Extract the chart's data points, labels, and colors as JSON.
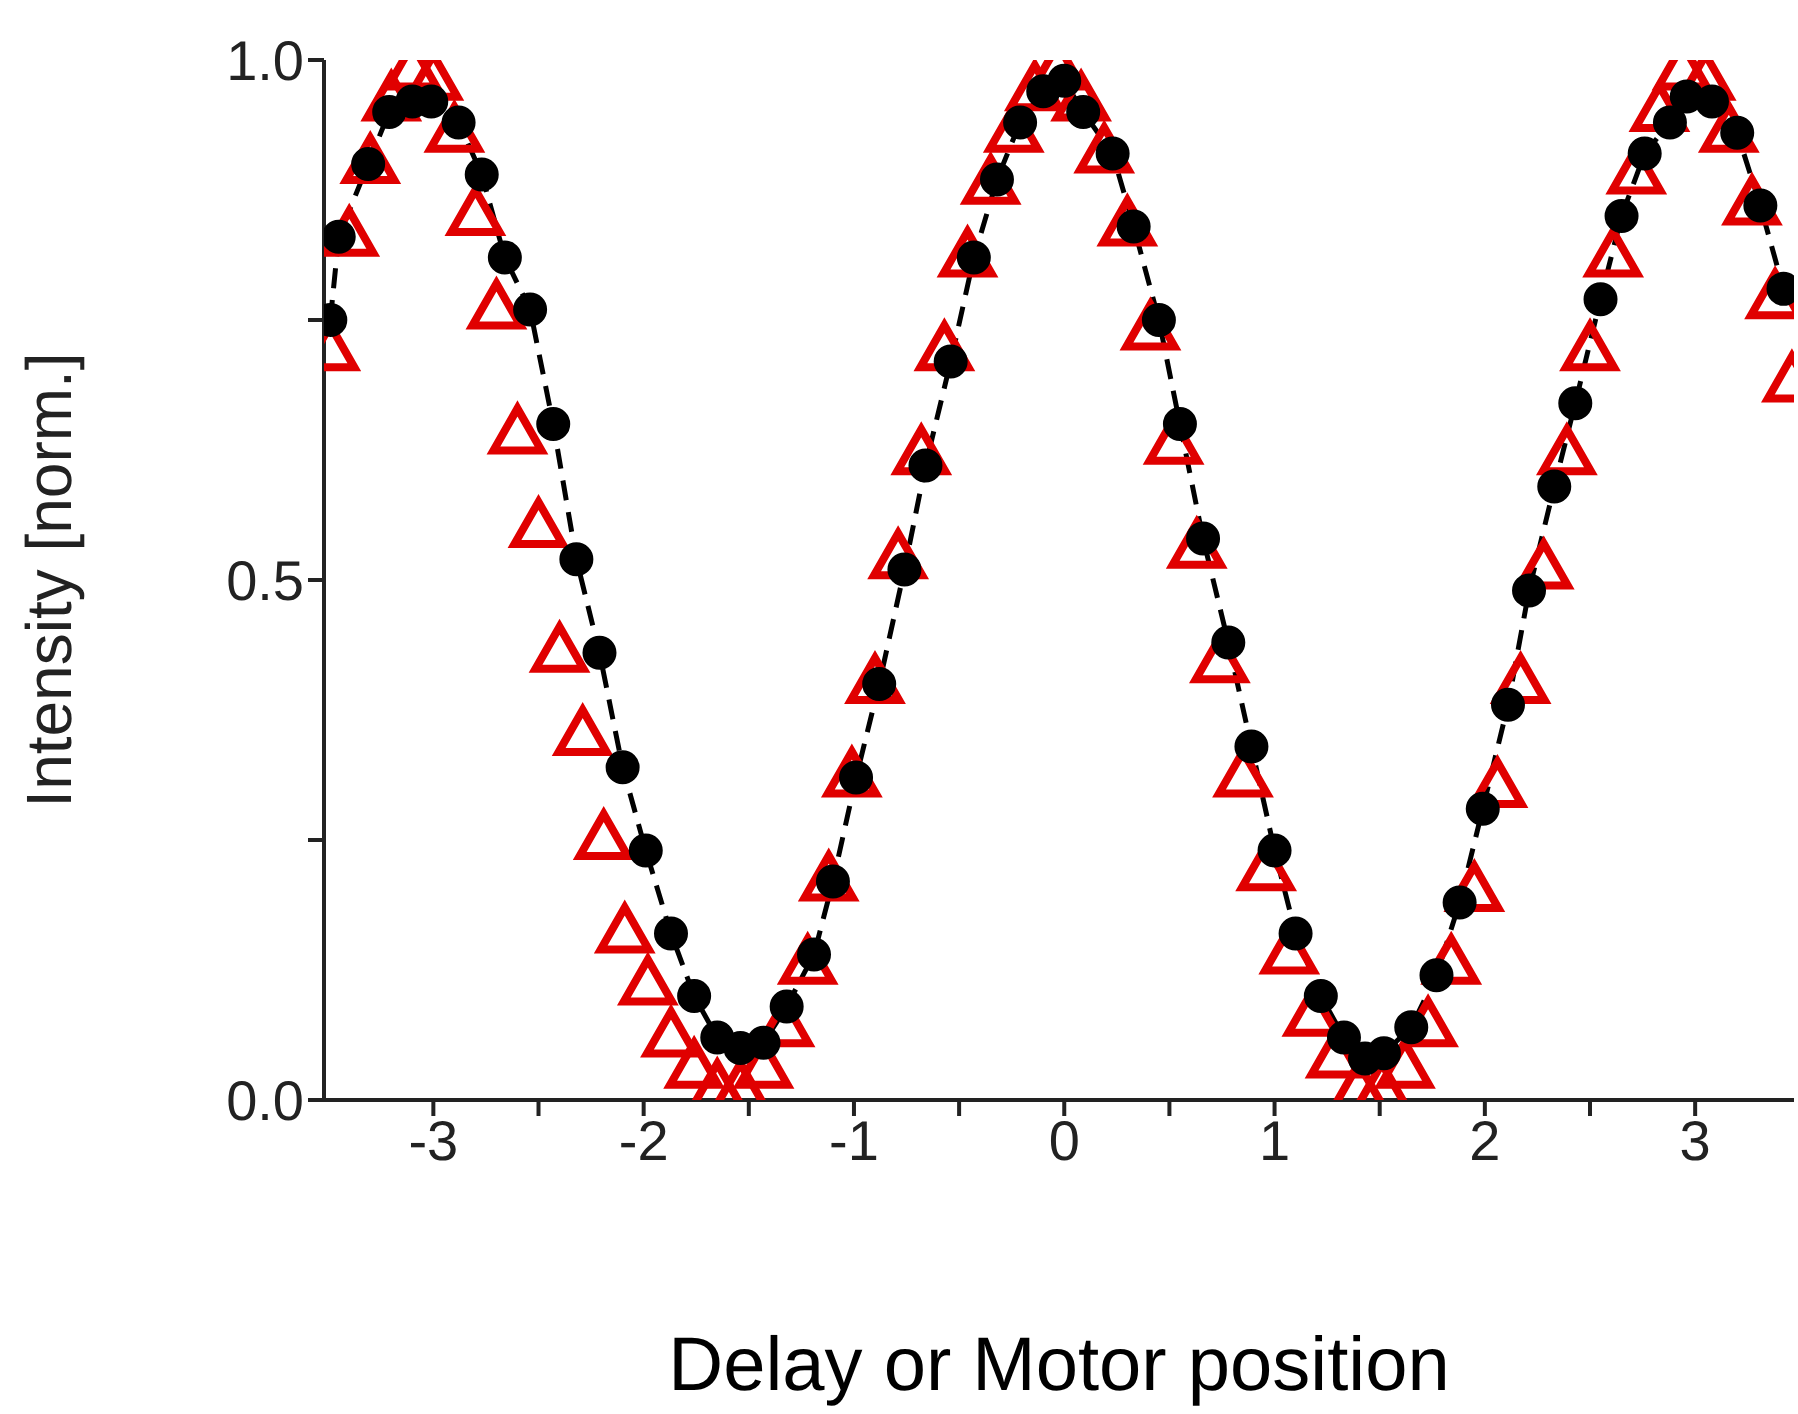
{
  "chart_data": {
    "type": "scatter",
    "xlabel": "Delay or Motor position",
    "ylabel": "Intensity [norm.]",
    "xlim": [
      -3.52,
      3.47
    ],
    "ylim": [
      0,
      1
    ],
    "xticks": [
      -3,
      {
        "value": -2.5,
        "label": null
      },
      -2,
      {
        "value": -1.5,
        "label": null
      },
      -1,
      {
        "value": -0.5,
        "label": null
      },
      0,
      {
        "value": 0.5,
        "label": null
      },
      1,
      {
        "value": 1.5,
        "label": null
      },
      2,
      {
        "value": 2.5,
        "label": null
      },
      3
    ],
    "yticks": [
      {
        "value": 0,
        "label": "0.0"
      },
      {
        "value": 0.25,
        "label": null
      },
      0.5,
      {
        "value": 0.75,
        "label": null
      },
      {
        "value": 1,
        "label": "1.0"
      }
    ],
    "grid": false,
    "legend": false,
    "series": [
      {
        "type": "scatter",
        "marker": "triangle",
        "color": "#e00000",
        "x": [
          -3.49,
          -3.4,
          -3.3,
          -3.2,
          -3.1,
          -3.0,
          -2.9,
          -2.8,
          -2.7,
          -2.6,
          -2.5,
          -2.4,
          -2.29,
          -2.19,
          -2.09,
          -1.98,
          -1.87,
          -1.76,
          -1.65,
          -1.54,
          -1.43,
          -1.33,
          -1.22,
          -1.12,
          -1.01,
          -0.9,
          -0.79,
          -0.68,
          -0.57,
          -0.46,
          -0.35,
          -0.24,
          -0.14,
          -0.03,
          0.08,
          0.19,
          0.3,
          0.41,
          0.52,
          0.63,
          0.74,
          0.85,
          0.96,
          1.07,
          1.18,
          1.29,
          1.4,
          1.51,
          1.62,
          1.73,
          1.84,
          1.95,
          2.06,
          2.17,
          2.28,
          2.39,
          2.5,
          2.61,
          2.72,
          2.83,
          2.94,
          3.05,
          3.16,
          3.27,
          3.38,
          3.46
        ],
        "values": [
          0.72,
          0.83,
          0.9,
          0.96,
          0.99,
          0.98,
          0.93,
          0.85,
          0.76,
          0.64,
          0.55,
          0.43,
          0.35,
          0.25,
          0.16,
          0.11,
          0.06,
          0.03,
          0.01,
          0.01,
          0.03,
          0.07,
          0.13,
          0.21,
          0.31,
          0.4,
          0.52,
          0.62,
          0.72,
          0.81,
          0.88,
          0.93,
          0.97,
          0.99,
          0.96,
          0.91,
          0.84,
          0.74,
          0.63,
          0.53,
          0.42,
          0.31,
          0.22,
          0.14,
          0.08,
          0.04,
          0.01,
          0.01,
          0.03,
          0.07,
          0.13,
          0.2,
          0.3,
          0.4,
          0.51,
          0.62,
          0.72,
          0.81,
          0.89,
          0.95,
          0.99,
          0.98,
          0.93,
          0.86,
          0.77,
          0.69
        ]
      },
      {
        "type": "line",
        "marker": "circle",
        "line_style": "dashed",
        "color": "#000000",
        "x": [
          -3.49,
          -3.45,
          -3.31,
          -3.21,
          -3.1,
          -3.01,
          -2.88,
          -2.77,
          -2.66,
          -2.54,
          -2.43,
          -2.32,
          -2.21,
          -2.1,
          -1.99,
          -1.87,
          -1.76,
          -1.65,
          -1.54,
          -1.43,
          -1.32,
          -1.19,
          -1.1,
          -0.99,
          -0.88,
          -0.76,
          -0.66,
          -0.54,
          -0.43,
          -0.32,
          -0.21,
          -0.1,
          0,
          0.09,
          0.23,
          0.33,
          0.45,
          0.55,
          0.66,
          0.78,
          0.89,
          1.0,
          1.1,
          1.22,
          1.33,
          1.43,
          1.52,
          1.65,
          1.77,
          1.88,
          1.99,
          2.11,
          2.21,
          2.33,
          2.43,
          2.55,
          2.65,
          2.76,
          2.88,
          2.96,
          3.08,
          3.2,
          3.31,
          3.42
        ],
        "values": [
          0.75,
          0.83,
          0.9,
          0.95,
          0.96,
          0.96,
          0.94,
          0.89,
          0.81,
          0.76,
          0.65,
          0.52,
          0.43,
          0.32,
          0.24,
          0.16,
          0.1,
          0.06,
          0.05,
          0.055,
          0.09,
          0.14,
          0.21,
          0.31,
          0.4,
          0.51,
          0.61,
          0.71,
          0.81,
          0.885,
          0.94,
          0.97,
          0.98,
          0.95,
          0.91,
          0.84,
          0.75,
          0.65,
          0.54,
          0.44,
          0.34,
          0.24,
          0.16,
          0.1,
          0.06,
          0.04,
          0.045,
          0.07,
          0.12,
          0.19,
          0.28,
          0.38,
          0.49,
          0.59,
          0.67,
          0.77,
          0.85,
          0.91,
          0.94,
          0.965,
          0.96,
          0.93,
          0.86,
          0.78
        ]
      }
    ]
  }
}
